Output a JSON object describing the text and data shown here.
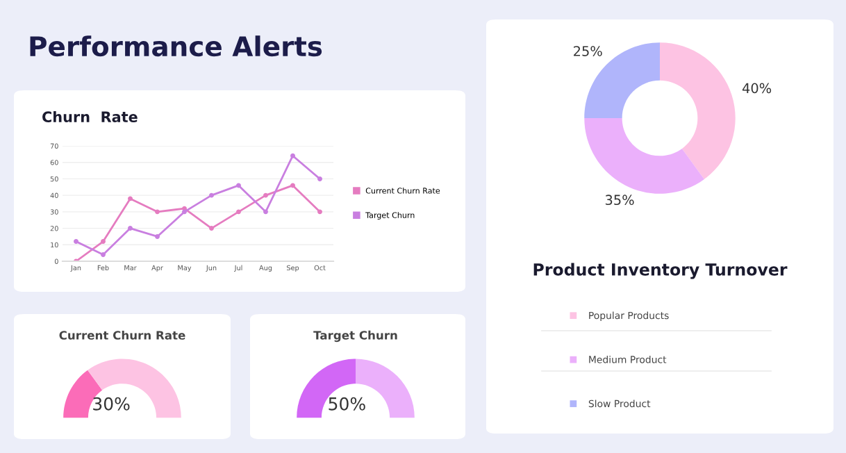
{
  "chart_data": [
    {
      "type": "line",
      "title": "Churn  Rate",
      "annotations": [
        "Performance Alerts"
      ],
      "categories": [
        "Jan",
        "Feb",
        "Mar",
        "Apr",
        "May",
        "Jun",
        "Jul",
        "Aug",
        "Sep",
        "Oct"
      ],
      "series": [
        {
          "name": "Current Churn Rate",
          "color": "#e57cc0",
          "values": [
            0,
            12,
            38,
            30,
            32,
            20,
            30,
            40,
            46,
            30
          ]
        },
        {
          "name": "Target Churn",
          "color": "#c97fe0",
          "values": [
            12,
            4,
            20,
            15,
            30,
            40,
            46,
            30,
            64,
            50
          ]
        }
      ],
      "ylim": [
        0,
        70
      ],
      "yticks": [
        0,
        10,
        20,
        30,
        40,
        50,
        60,
        70
      ],
      "grid": "y",
      "legend": "right",
      "marker": "circle",
      "line_style": "solid"
    },
    {
      "type": "donut",
      "title": "Product Inventory Turnover",
      "categories": [
        "Popular Products",
        "Medium Product",
        "Slow Product"
      ],
      "values": [
        40,
        35,
        25
      ],
      "colors": [
        "#fdc3e3",
        "#ebb0fb",
        "#b0b5fb"
      ],
      "value_labels": [
        "40%",
        "35%",
        "25%"
      ],
      "legend": "bottom"
    },
    {
      "type": "donut",
      "title": "Current Churn Rate",
      "categories": [
        null,
        null
      ],
      "values": [
        30,
        70
      ],
      "colors": [
        "#fb6cb8",
        "#fdc3e3"
      ],
      "value_labels": [
        "30%",
        null
      ]
    },
    {
      "type": "donut",
      "title": "Target Churn",
      "categories": [
        null,
        null
      ],
      "values": [
        50,
        50
      ],
      "colors": [
        "#d267f6",
        "#ebb0fb"
      ],
      "value_labels": [
        "50%",
        null
      ]
    }
  ]
}
